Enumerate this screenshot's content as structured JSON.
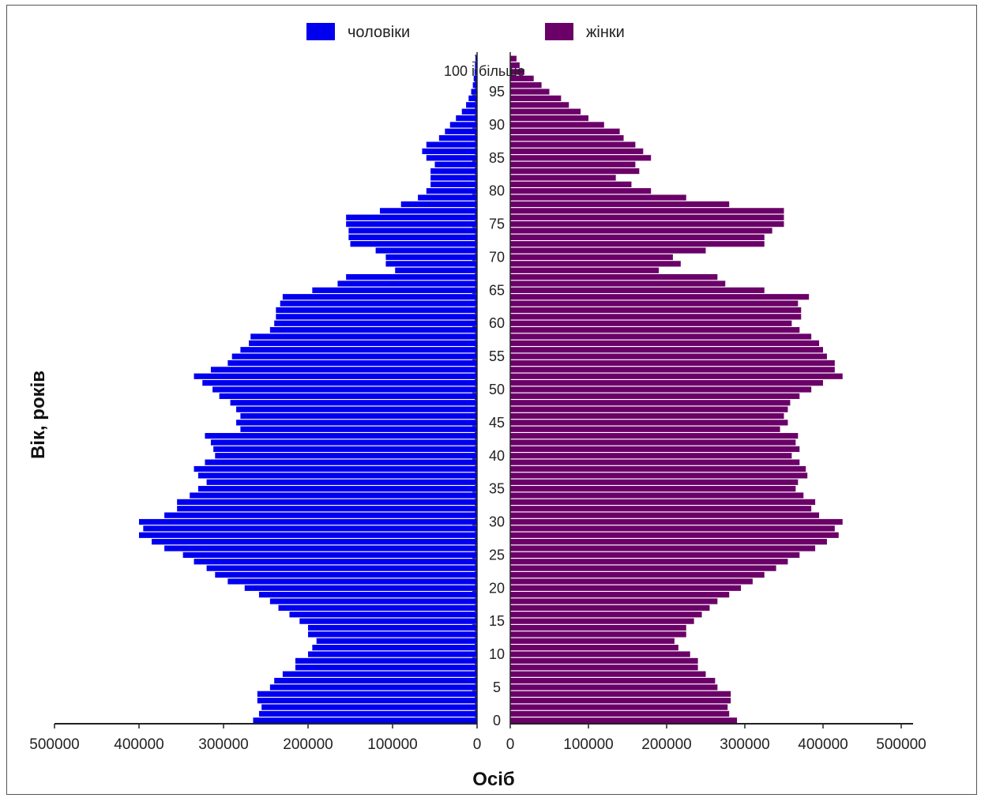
{
  "chart_data": {
    "type": "bar",
    "orientation": "horizontal",
    "subtype": "population-pyramid",
    "xlabel": "Осіб",
    "ylabel": "Вік, років",
    "top_category_label": "100 і більше",
    "x_ticks_left": [
      "500000",
      "400000",
      "300000",
      "200000",
      "100000",
      "0"
    ],
    "x_ticks_right": [
      "0",
      "100000",
      "200000",
      "300000",
      "400000",
      "500000"
    ],
    "age_ticks": [
      "0",
      "5",
      "10",
      "15",
      "20",
      "25",
      "30",
      "35",
      "40",
      "45",
      "50",
      "55",
      "60",
      "65",
      "70",
      "75",
      "80",
      "85",
      "90",
      "95"
    ],
    "xlim": [
      0,
      500000
    ],
    "legend_position": "top",
    "ages": [
      0,
      1,
      2,
      3,
      4,
      5,
      6,
      7,
      8,
      9,
      10,
      11,
      12,
      13,
      14,
      15,
      16,
      17,
      18,
      19,
      20,
      21,
      22,
      23,
      24,
      25,
      26,
      27,
      28,
      29,
      30,
      31,
      32,
      33,
      34,
      35,
      36,
      37,
      38,
      39,
      40,
      41,
      42,
      43,
      44,
      45,
      46,
      47,
      48,
      49,
      50,
      51,
      52,
      53,
      54,
      55,
      56,
      57,
      58,
      59,
      60,
      61,
      62,
      63,
      64,
      65,
      66,
      67,
      68,
      69,
      70,
      71,
      72,
      73,
      74,
      75,
      76,
      77,
      78,
      79,
      80,
      81,
      82,
      83,
      84,
      85,
      86,
      87,
      88,
      89,
      90,
      91,
      92,
      93,
      94,
      95,
      96,
      97,
      98,
      99,
      100
    ],
    "series": [
      {
        "name": "чоловіки",
        "color": "#0000ee",
        "side": "left",
        "values": [
          265000,
          258000,
          255000,
          260000,
          260000,
          245000,
          240000,
          230000,
          215000,
          215000,
          200000,
          195000,
          190000,
          200000,
          200000,
          210000,
          222000,
          235000,
          245000,
          258000,
          275000,
          295000,
          310000,
          320000,
          335000,
          348000,
          370000,
          385000,
          400000,
          395000,
          400000,
          370000,
          355000,
          355000,
          340000,
          330000,
          320000,
          330000,
          335000,
          322000,
          310000,
          312000,
          315000,
          322000,
          280000,
          285000,
          280000,
          285000,
          292000,
          305000,
          313000,
          325000,
          335000,
          315000,
          295000,
          290000,
          280000,
          270000,
          268000,
          245000,
          240000,
          238000,
          238000,
          233000,
          230000,
          195000,
          165000,
          155000,
          97000,
          108000,
          108000,
          120000,
          150000,
          152000,
          152000,
          155000,
          155000,
          115000,
          90000,
          70000,
          60000,
          55000,
          55000,
          55000,
          50000,
          60000,
          65000,
          60000,
          45000,
          38000,
          32000,
          25000,
          18000,
          13000,
          10000,
          7000,
          5000,
          4000,
          3000,
          2500,
          2000
        ]
      },
      {
        "name": "жінки",
        "color": "#6b0068",
        "side": "right",
        "values": [
          290000,
          280000,
          278000,
          282000,
          282000,
          265000,
          262000,
          250000,
          240000,
          240000,
          230000,
          215000,
          210000,
          225000,
          225000,
          235000,
          245000,
          255000,
          265000,
          280000,
          295000,
          310000,
          325000,
          340000,
          355000,
          370000,
          390000,
          405000,
          420000,
          415000,
          425000,
          395000,
          385000,
          390000,
          375000,
          365000,
          368000,
          380000,
          378000,
          370000,
          360000,
          370000,
          365000,
          368000,
          345000,
          355000,
          350000,
          355000,
          358000,
          370000,
          385000,
          400000,
          425000,
          415000,
          415000,
          405000,
          400000,
          395000,
          385000,
          370000,
          360000,
          372000,
          372000,
          368000,
          382000,
          325000,
          275000,
          265000,
          190000,
          218000,
          208000,
          250000,
          325000,
          325000,
          335000,
          350000,
          350000,
          350000,
          280000,
          225000,
          180000,
          155000,
          135000,
          165000,
          160000,
          180000,
          170000,
          160000,
          145000,
          140000,
          120000,
          100000,
          90000,
          75000,
          65000,
          50000,
          40000,
          30000,
          18000,
          12000,
          8000
        ]
      }
    ]
  }
}
